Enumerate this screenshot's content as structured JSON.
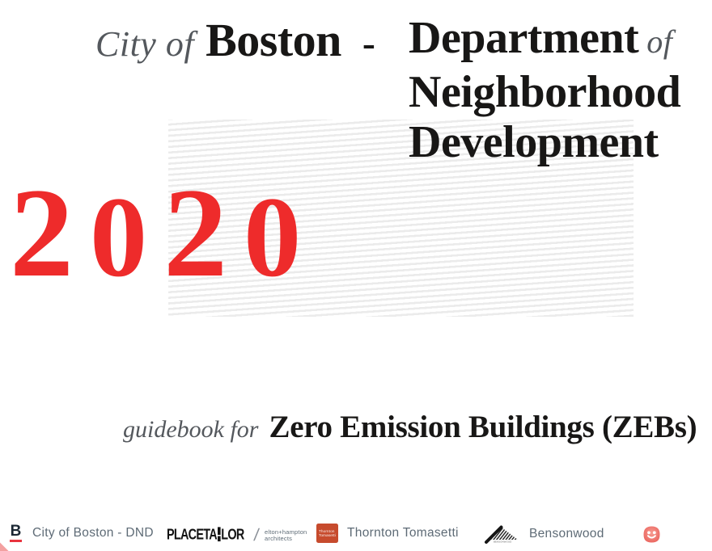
{
  "title": {
    "prefix": "City of",
    "city": "Boston",
    "separator": "-",
    "dept_word": "Department",
    "dept_of": "of",
    "line2": "Neighborhood",
    "line3": "Development"
  },
  "year": "2020",
  "subtitle": {
    "prefix": "guidebook for",
    "main": "Zero Emission Buildings (ZEBs)"
  },
  "footer": {
    "boston": {
      "logo_letter": "B",
      "label": "City of Boston - DND"
    },
    "placetailor": {
      "name": "PLACETAILOR",
      "left": "PLACETA",
      "right": "LOR"
    },
    "elton": {
      "separator": "/",
      "line1": "elton+hampton",
      "line2": "architects"
    },
    "thornton": {
      "logo_line1": "Thornton",
      "logo_line2": "Tomasetti",
      "label": "Thornton Tomasetti"
    },
    "bensonwood": {
      "logo_text": "BENSONWOOD",
      "label": "Bensonwood"
    },
    "smiley_icon": "smiley-face"
  },
  "colors": {
    "accent_red": "#ee2b2b",
    "title_black": "#181716",
    "muted_gray": "#54585d",
    "footer_gray": "#5e6b76",
    "hatch_gray": "#ebebeb",
    "boston_navy": "#1b2733",
    "boston_red": "#e8343f",
    "thornton_red": "#c74b2d",
    "smiley_red": "#ea625c",
    "smiley_light": "#f79c92",
    "logo_black": "#121212",
    "sliver_red": "#ef8080"
  }
}
